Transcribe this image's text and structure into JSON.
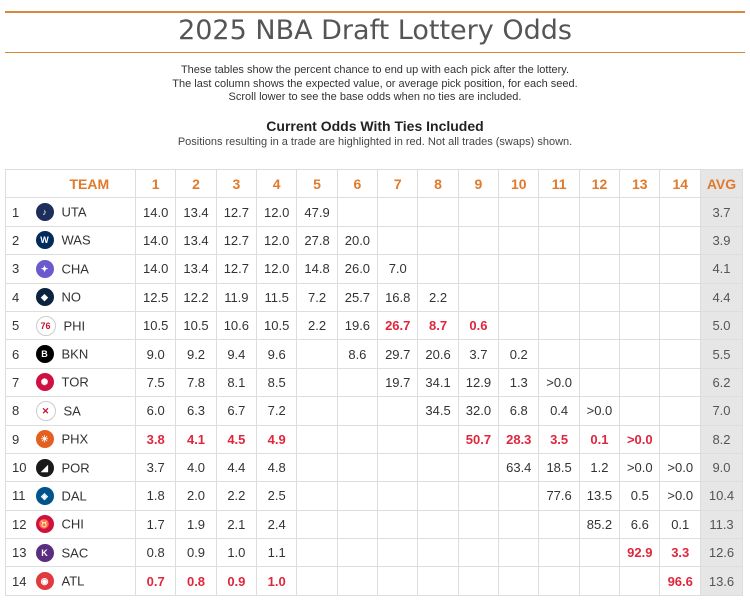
{
  "title": "2025 NBA Draft Lottery Odds",
  "intro_lines": [
    "These tables show the percent chance to end up with each pick after the lottery.",
    "The last column shows the expected value, or average pick position, for each seed.",
    "Scroll lower to see the base odds when no ties are included."
  ],
  "subtitle": "Current Odds With Ties Included",
  "note": "Positions resulting in a trade are highlighted in red. Not all trades (swaps) shown.",
  "headers": {
    "team": "TEAM",
    "picks": [
      "1",
      "2",
      "3",
      "4",
      "5",
      "6",
      "7",
      "8",
      "9",
      "10",
      "11",
      "12",
      "13",
      "14"
    ],
    "avg": "AVG"
  },
  "rows": [
    {
      "seed": "1",
      "team": "UTA",
      "logo_color": "#1d2e5c",
      "logo_glyph": "♪",
      "cells": [
        "14.0",
        "13.4",
        "12.7",
        "12.0",
        "47.9",
        "",
        "",
        "",
        "",
        "",
        "",
        "",
        "",
        ""
      ],
      "red": [],
      "avg": "3.7"
    },
    {
      "seed": "2",
      "team": "WAS",
      "logo_color": "#002b5c",
      "logo_glyph": "W",
      "cells": [
        "14.0",
        "13.4",
        "12.7",
        "12.0",
        "27.8",
        "20.0",
        "",
        "",
        "",
        "",
        "",
        "",
        "",
        ""
      ],
      "red": [],
      "avg": "3.9"
    },
    {
      "seed": "3",
      "team": "CHA",
      "logo_color": "#6a5acd",
      "logo_glyph": "✦",
      "cells": [
        "14.0",
        "13.4",
        "12.7",
        "12.0",
        "14.8",
        "26.0",
        "7.0",
        "",
        "",
        "",
        "",
        "",
        "",
        ""
      ],
      "red": [],
      "avg": "4.1"
    },
    {
      "seed": "4",
      "team": "NO",
      "logo_color": "#0c2340",
      "logo_glyph": "◆",
      "cells": [
        "12.5",
        "12.2",
        "11.9",
        "11.5",
        "7.2",
        "25.7",
        "16.8",
        "2.2",
        "",
        "",
        "",
        "",
        "",
        ""
      ],
      "red": [],
      "avg": "4.4"
    },
    {
      "seed": "5",
      "team": "PHI",
      "logo_color": "#ffffff",
      "logo_glyph": "76",
      "cells": [
        "10.5",
        "10.5",
        "10.6",
        "10.5",
        "2.2",
        "19.6",
        "26.7",
        "8.7",
        "0.6",
        "",
        "",
        "",
        "",
        ""
      ],
      "red": [
        6,
        7,
        8
      ],
      "avg": "5.0"
    },
    {
      "seed": "6",
      "team": "BKN",
      "logo_color": "#000000",
      "logo_glyph": "B",
      "cells": [
        "9.0",
        "9.2",
        "9.4",
        "9.6",
        "",
        "8.6",
        "29.7",
        "20.6",
        "3.7",
        "0.2",
        "",
        "",
        "",
        ""
      ],
      "red": [],
      "avg": "5.5"
    },
    {
      "seed": "7",
      "team": "TOR",
      "logo_color": "#ce1141",
      "logo_glyph": "✺",
      "cells": [
        "7.5",
        "7.8",
        "8.1",
        "8.5",
        "",
        "",
        "19.7",
        "34.1",
        "12.9",
        "1.3",
        ">0.0",
        "",
        "",
        ""
      ],
      "red": [],
      "avg": "6.2"
    },
    {
      "seed": "8",
      "team": "SA",
      "logo_color": "#ffffff",
      "logo_glyph": "✕",
      "cells": [
        "6.0",
        "6.3",
        "6.7",
        "7.2",
        "",
        "",
        "",
        "34.5",
        "32.0",
        "6.8",
        "0.4",
        ">0.0",
        "",
        ""
      ],
      "red": [],
      "avg": "7.0"
    },
    {
      "seed": "9",
      "team": "PHX",
      "logo_color": "#e56020",
      "logo_glyph": "☀",
      "cells": [
        "3.8",
        "4.1",
        "4.5",
        "4.9",
        "",
        "",
        "",
        "",
        "50.7",
        "28.3",
        "3.5",
        "0.1",
        ">0.0",
        ""
      ],
      "red": [
        0,
        1,
        2,
        3,
        8,
        9,
        10,
        11,
        12
      ],
      "avg": "8.2"
    },
    {
      "seed": "10",
      "team": "POR",
      "logo_color": "#1a1a1a",
      "logo_glyph": "◢",
      "cells": [
        "3.7",
        "4.0",
        "4.4",
        "4.8",
        "",
        "",
        "",
        "",
        "",
        "63.4",
        "18.5",
        "1.2",
        ">0.0",
        ">0.0"
      ],
      "red": [],
      "avg": "9.0"
    },
    {
      "seed": "11",
      "team": "DAL",
      "logo_color": "#00538c",
      "logo_glyph": "◈",
      "cells": [
        "1.8",
        "2.0",
        "2.2",
        "2.5",
        "",
        "",
        "",
        "",
        "",
        "",
        "77.6",
        "13.5",
        "0.5",
        ">0.0"
      ],
      "red": [],
      "avg": "10.4"
    },
    {
      "seed": "12",
      "team": "CHI",
      "logo_color": "#ce1141",
      "logo_glyph": "♉",
      "cells": [
        "1.7",
        "1.9",
        "2.1",
        "2.4",
        "",
        "",
        "",
        "",
        "",
        "",
        "",
        "85.2",
        "6.6",
        "0.1"
      ],
      "red": [],
      "avg": "11.3"
    },
    {
      "seed": "13",
      "team": "SAC",
      "logo_color": "#5a2d81",
      "logo_glyph": "K",
      "cells": [
        "0.8",
        "0.9",
        "1.0",
        "1.1",
        "",
        "",
        "",
        "",
        "",
        "",
        "",
        "",
        "92.9",
        "3.3"
      ],
      "red": [
        12,
        13
      ],
      "avg": "12.6"
    },
    {
      "seed": "14",
      "team": "ATL",
      "logo_color": "#e03a3e",
      "logo_glyph": "◉",
      "cells": [
        "0.7",
        "0.8",
        "0.9",
        "1.0",
        "",
        "",
        "",
        "",
        "",
        "",
        "",
        "",
        "",
        "96.6"
      ],
      "red": [
        0,
        1,
        2,
        3,
        13
      ],
      "avg": "13.6"
    }
  ]
}
